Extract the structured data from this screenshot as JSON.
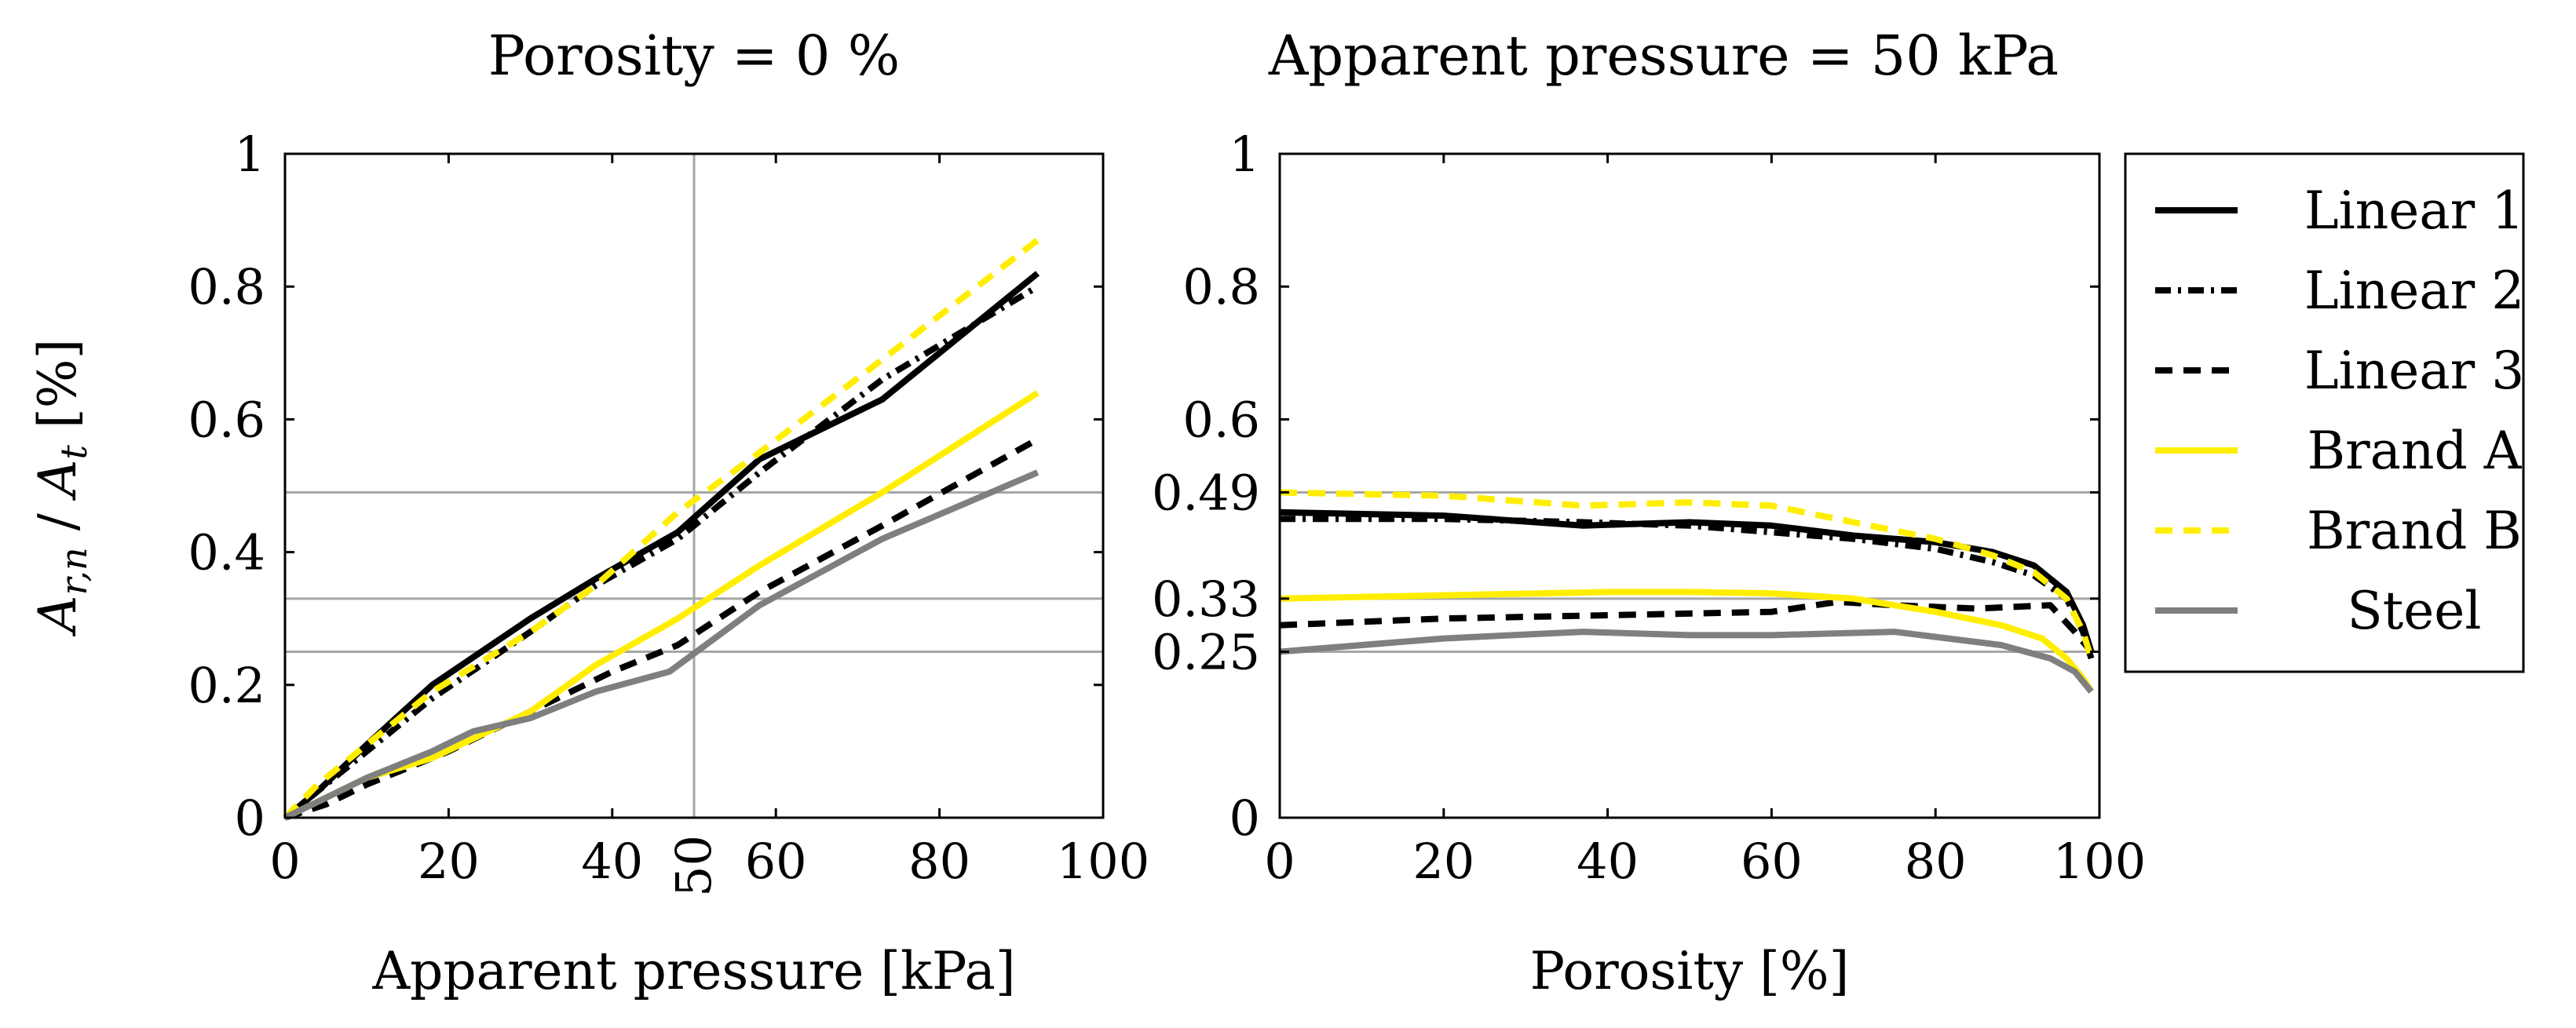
{
  "colors": {
    "black": "#000000",
    "yellow": "#ffee00",
    "gray": "#7f7f7f",
    "grid": "#a6a6a6",
    "background": "#ffffff"
  },
  "ylabel": {
    "prefix": "A",
    "sub1": "r,n",
    "slash": " / ",
    "prefix2": "A",
    "sub2": "t",
    "unit": " [%]"
  },
  "legend": {
    "entries": [
      {
        "label": "Linear 1",
        "color": "#000000",
        "dash": "solid"
      },
      {
        "label": "Linear 2",
        "color": "#000000",
        "dash": "dashdot"
      },
      {
        "label": "Linear 3",
        "color": "#000000",
        "dash": "dashed"
      },
      {
        "label": "Brand A",
        "color": "#ffee00",
        "dash": "solid"
      },
      {
        "label": "Brand B",
        "color": "#ffee00",
        "dash": "dashed"
      },
      {
        "label": "Steel",
        "color": "#7f7f7f",
        "dash": "solid"
      }
    ]
  },
  "chart_data": [
    {
      "type": "line",
      "title": "Porosity = 0 %",
      "xlabel": "Apparent pressure [kPa]",
      "ylabel": "A_{r,n} / A_t [%]",
      "xlim": [
        0,
        100
      ],
      "ylim": [
        0,
        1
      ],
      "xticks": [
        0,
        20,
        40,
        60,
        80,
        100
      ],
      "xtick_labels": [
        "0",
        "20",
        "40",
        "60",
        "80",
        "100"
      ],
      "yticks": [
        0,
        0.2,
        0.4,
        0.6,
        0.8,
        1
      ],
      "ytick_labels": [
        "0",
        "0.2",
        "0.4",
        "0.6",
        "0.8",
        "1"
      ],
      "extra_xtick": {
        "value": 50,
        "label": "50"
      },
      "vgrid": [
        50
      ],
      "hgrid": [
        0.49,
        0.33,
        0.25
      ],
      "series": [
        {
          "name": "Linear 1",
          "x": [
            0,
            4,
            10,
            18,
            30,
            38,
            48,
            58,
            73,
            92
          ],
          "y": [
            0,
            0.04,
            0.11,
            0.2,
            0.3,
            0.36,
            0.43,
            0.54,
            0.63,
            0.82
          ]
        },
        {
          "name": "Linear 2",
          "x": [
            0,
            4,
            10,
            18,
            30,
            38,
            48,
            58,
            73,
            92
          ],
          "y": [
            0,
            0.04,
            0.1,
            0.18,
            0.28,
            0.35,
            0.42,
            0.52,
            0.66,
            0.8
          ]
        },
        {
          "name": "Linear 3",
          "x": [
            0,
            5,
            10,
            20,
            30,
            40,
            48,
            58,
            73,
            92
          ],
          "y": [
            0,
            0.02,
            0.05,
            0.1,
            0.16,
            0.22,
            0.26,
            0.34,
            0.44,
            0.57
          ]
        },
        {
          "name": "Brand A",
          "x": [
            0,
            5,
            10,
            18,
            30,
            38,
            48,
            58,
            73,
            92
          ],
          "y": [
            0,
            0.03,
            0.06,
            0.09,
            0.16,
            0.23,
            0.3,
            0.38,
            0.49,
            0.64
          ]
        },
        {
          "name": "Brand B",
          "x": [
            0,
            4,
            10,
            18,
            30,
            38,
            48,
            58,
            73,
            92
          ],
          "y": [
            0,
            0.05,
            0.11,
            0.19,
            0.28,
            0.35,
            0.46,
            0.55,
            0.69,
            0.87
          ]
        },
        {
          "name": "Steel",
          "x": [
            0,
            5,
            10,
            18,
            23,
            30,
            38,
            47,
            58,
            73,
            92
          ],
          "y": [
            0,
            0.03,
            0.06,
            0.1,
            0.13,
            0.15,
            0.19,
            0.22,
            0.32,
            0.42,
            0.52
          ]
        }
      ]
    },
    {
      "type": "line",
      "title": "Apparent pressure = 50 kPa",
      "xlabel": "Porosity [%]",
      "xlim": [
        0,
        100
      ],
      "ylim": [
        0,
        1
      ],
      "xticks": [
        0,
        20,
        40,
        60,
        80,
        100
      ],
      "xtick_labels": [
        "0",
        "20",
        "40",
        "60",
        "80",
        "100"
      ],
      "yticks": [
        0,
        0.25,
        0.33,
        0.49,
        0.6,
        0.8,
        1
      ],
      "ytick_labels": [
        "0",
        "0.25",
        "0.33",
        "0.49",
        "0.6",
        "0.8",
        "1"
      ],
      "hgrid": [
        0.49,
        0.33,
        0.25
      ],
      "series": [
        {
          "name": "Linear 1",
          "x": [
            0,
            20,
            37,
            50,
            60,
            70,
            80,
            87,
            92,
            96,
            98,
            99
          ],
          "y": [
            0.46,
            0.455,
            0.44,
            0.445,
            0.44,
            0.425,
            0.415,
            0.4,
            0.38,
            0.34,
            0.29,
            0.25
          ]
        },
        {
          "name": "Linear 2",
          "x": [
            0,
            20,
            37,
            50,
            60,
            70,
            80,
            87,
            92,
            96,
            98,
            99
          ],
          "y": [
            0.45,
            0.45,
            0.445,
            0.44,
            0.43,
            0.42,
            0.405,
            0.385,
            0.365,
            0.33,
            0.28,
            0.24
          ]
        },
        {
          "name": "Linear 3",
          "x": [
            0,
            20,
            40,
            60,
            68,
            75,
            85,
            94,
            97,
            99
          ],
          "y": [
            0.29,
            0.3,
            0.305,
            0.31,
            0.325,
            0.32,
            0.315,
            0.32,
            0.28,
            0.25
          ]
        },
        {
          "name": "Brand A",
          "x": [
            0,
            20,
            40,
            50,
            60,
            70,
            80,
            88,
            93,
            96,
            98,
            99
          ],
          "y": [
            0.33,
            0.335,
            0.34,
            0.34,
            0.338,
            0.33,
            0.31,
            0.29,
            0.27,
            0.24,
            0.21,
            0.19
          ]
        },
        {
          "name": "Brand B",
          "x": [
            0,
            20,
            37,
            50,
            60,
            70,
            80,
            87,
            92,
            96,
            98,
            99
          ],
          "y": [
            0.49,
            0.485,
            0.47,
            0.475,
            0.47,
            0.445,
            0.42,
            0.395,
            0.37,
            0.33,
            0.28,
            0.24
          ]
        },
        {
          "name": "Steel",
          "x": [
            0,
            20,
            37,
            50,
            60,
            75,
            88,
            94,
            97,
            99
          ],
          "y": [
            0.25,
            0.27,
            0.28,
            0.275,
            0.275,
            0.28,
            0.26,
            0.24,
            0.22,
            0.19
          ]
        }
      ]
    }
  ]
}
